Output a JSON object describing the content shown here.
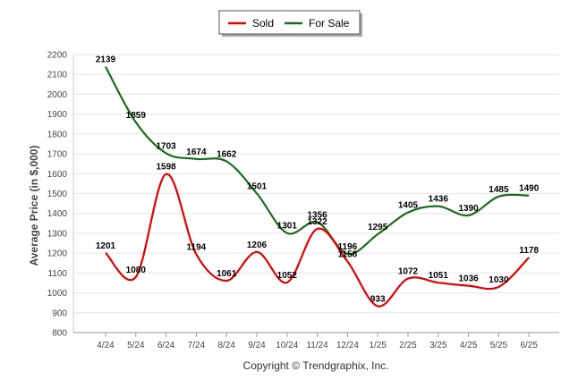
{
  "chart_data": {
    "type": "line",
    "title": "",
    "xlabel": "",
    "ylabel": "Average Price (in $,000)",
    "categories": [
      "4/24",
      "5/24",
      "6/24",
      "7/24",
      "8/24",
      "9/24",
      "10/24",
      "11/24",
      "12/24",
      "1/25",
      "2/25",
      "3/25",
      "4/25",
      "5/25",
      "6/25"
    ],
    "yticks": [
      800,
      900,
      1000,
      1100,
      1200,
      1300,
      1400,
      1500,
      1600,
      1700,
      1800,
      1900,
      2000,
      2100,
      2200
    ],
    "ylim": [
      800,
      2200
    ],
    "grid": true,
    "legend_position": "top-center",
    "series": [
      {
        "name": "Sold",
        "color": "#e00000",
        "values": [
          1201,
          1080,
          1598,
          1194,
          1061,
          1206,
          1052,
          1322,
          1158,
          933,
          1072,
          1051,
          1036,
          1030,
          1178
        ]
      },
      {
        "name": "For Sale",
        "color": "#1a6b1a",
        "values": [
          2139,
          1859,
          1703,
          1674,
          1662,
          1501,
          1301,
          1356,
          1196,
          1295,
          1405,
          1436,
          1390,
          1485,
          1490
        ]
      }
    ],
    "credit": "Copyright © Trendgraphix, Inc."
  }
}
